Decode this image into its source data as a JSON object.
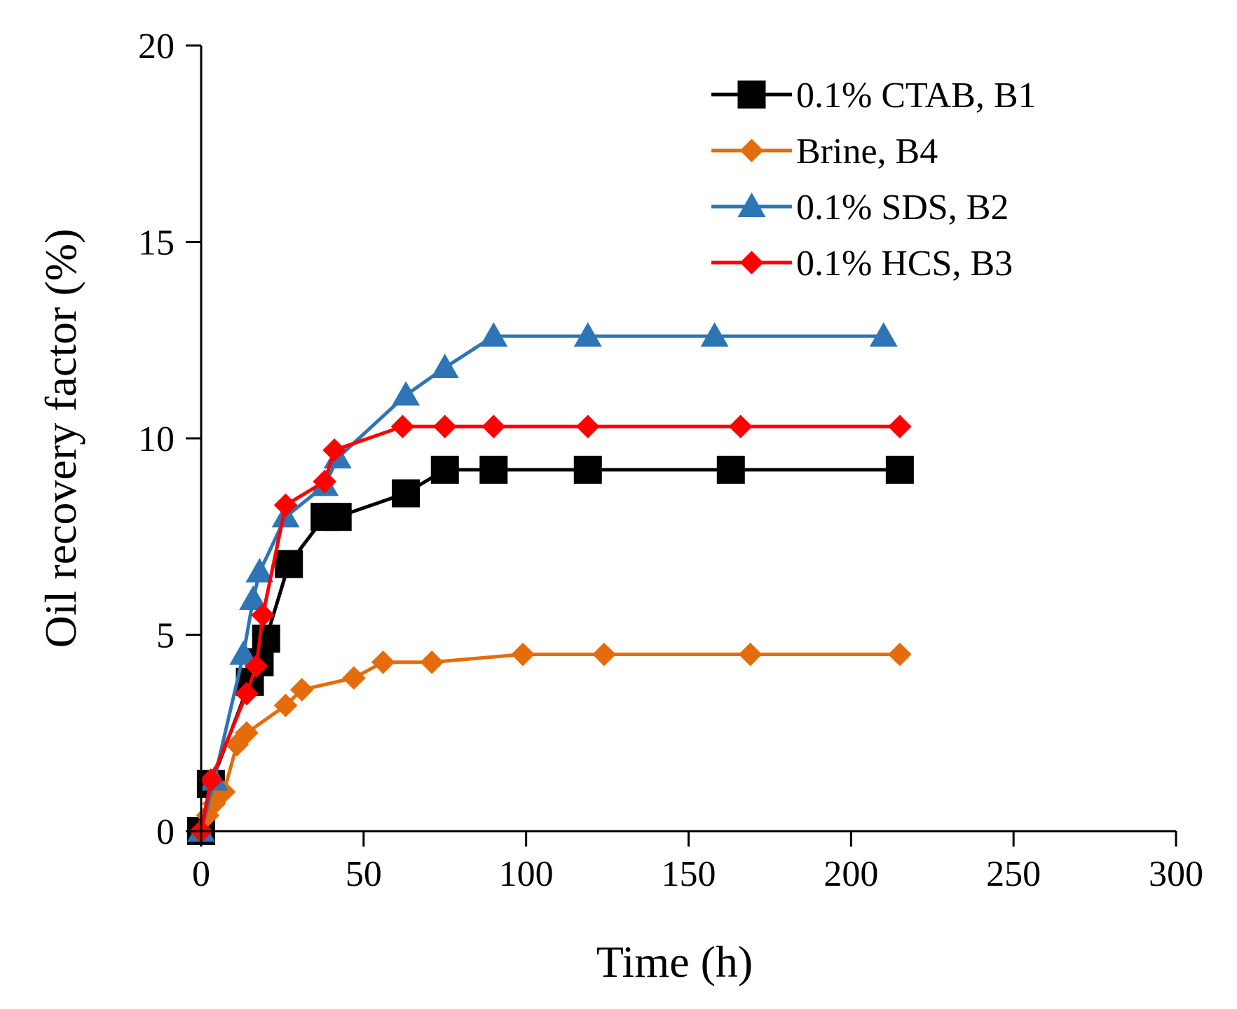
{
  "chart_data": {
    "type": "line",
    "title": "",
    "xlabel": "Time (h)",
    "ylabel": "Oil recovery factor (%)",
    "xlim": [
      0,
      300
    ],
    "ylim": [
      0,
      20
    ],
    "x_ticks": [
      "0",
      "50",
      "100",
      "150",
      "200",
      "250",
      "300"
    ],
    "y_ticks": [
      "0",
      "5",
      "10",
      "15",
      "20"
    ],
    "grid": false,
    "legend_position": "top-right",
    "series": [
      {
        "name": "0.1% CTAB, B1",
        "color": "#000000",
        "marker": "square",
        "x": [
          0,
          3,
          15,
          18,
          20,
          27,
          38,
          42,
          63,
          75,
          90,
          119,
          163,
          215
        ],
        "y": [
          0,
          1.2,
          3.8,
          4.3,
          4.9,
          6.8,
          8.0,
          8.0,
          8.6,
          9.2,
          9.2,
          9.2,
          9.2,
          9.2
        ]
      },
      {
        "name": "Brine, B4",
        "color": "#E46C0A",
        "marker": "diamond",
        "x": [
          0,
          2,
          4,
          7,
          11,
          14,
          26,
          31,
          47,
          56,
          71,
          99,
          124,
          169,
          215
        ],
        "y": [
          0,
          0.4,
          0.7,
          1.0,
          2.2,
          2.5,
          3.2,
          3.6,
          3.9,
          4.3,
          4.3,
          4.5,
          4.5,
          4.5,
          4.5
        ]
      },
      {
        "name": "0.1% SDS, B2",
        "color": "#2E75B6",
        "marker": "triangle",
        "x": [
          0,
          4,
          13,
          16,
          18,
          26,
          38,
          42,
          63,
          75,
          90,
          119,
          158,
          210
        ],
        "y": [
          0,
          1.3,
          4.5,
          5.9,
          6.6,
          8.0,
          8.8,
          9.5,
          11.1,
          11.8,
          12.6,
          12.6,
          12.6,
          12.6
        ]
      },
      {
        "name": "0.1% HCS, B3",
        "color": "#FF0000",
        "marker": "diamond",
        "x": [
          0,
          3,
          14,
          17,
          19,
          26,
          38,
          41,
          62,
          75,
          90,
          119,
          166,
          215
        ],
        "y": [
          0,
          1.3,
          3.5,
          4.2,
          5.5,
          8.3,
          8.9,
          9.7,
          10.3,
          10.3,
          10.3,
          10.3,
          10.3,
          10.3
        ]
      }
    ]
  }
}
